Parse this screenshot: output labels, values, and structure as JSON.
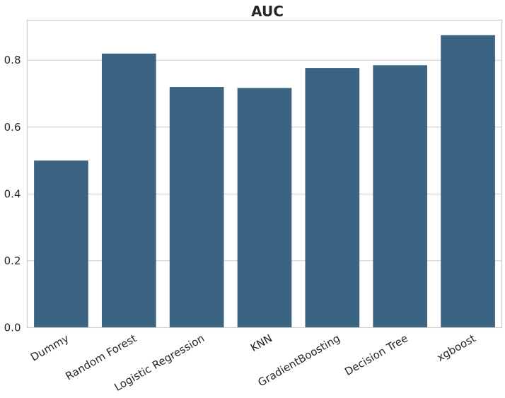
{
  "chart_data": {
    "type": "bar",
    "title": "AUC",
    "xlabel": "",
    "ylabel": "",
    "categories": [
      "Dummy",
      "Random Forest",
      "Logistic Regression",
      "KNN",
      "GradientBoosting",
      "Decision Tree",
      "xgboost"
    ],
    "values": [
      0.5,
      0.82,
      0.72,
      0.717,
      0.777,
      0.785,
      0.875
    ],
    "ylim": [
      0,
      0.92
    ],
    "yticks": [
      0.0,
      0.2,
      0.4,
      0.6,
      0.8
    ],
    "ytick_labels": [
      "0.0",
      "0.2",
      "0.4",
      "0.6",
      "0.8"
    ],
    "grid": "horizontal",
    "x_tick_rotation_deg": -30,
    "bar_color": "#3b6482"
  }
}
